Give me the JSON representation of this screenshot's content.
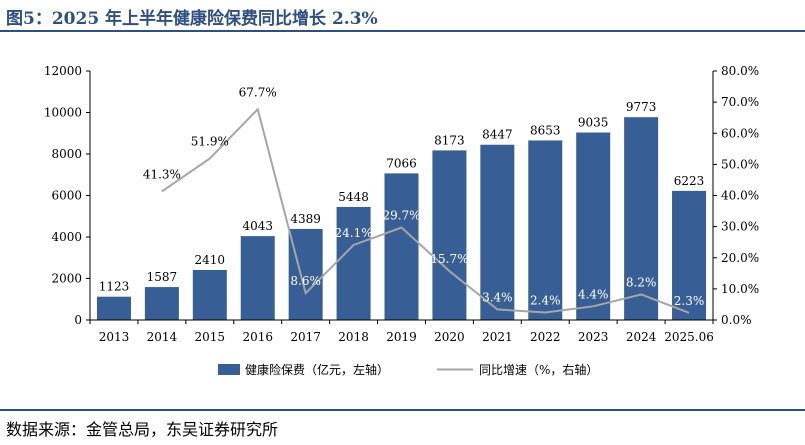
{
  "figure": {
    "title": "图5：2025 年上半年健康险保费同比增长 2.3%",
    "source": "数据来源：金管总局，东吴证券研究所"
  },
  "chart_data": {
    "type": "bar",
    "categories": [
      "2013",
      "2014",
      "2015",
      "2016",
      "2017",
      "2018",
      "2019",
      "2020",
      "2021",
      "2022",
      "2023",
      "2024",
      "2025.06"
    ],
    "series": [
      {
        "name": "健康险保费（亿元，左轴）",
        "type": "bar",
        "axis": "left",
        "color": "#385f95",
        "values": [
          1123,
          1587,
          2410,
          4043,
          4389,
          5448,
          7066,
          8173,
          8447,
          8653,
          9035,
          9773,
          6223
        ],
        "labels": [
          "1123",
          "1587",
          "2410",
          "4043",
          "4389",
          "5448",
          "7066",
          "8173",
          "8447",
          "8653",
          "9035",
          "9773",
          "6223"
        ]
      },
      {
        "name": "同比增速（%，右轴）",
        "type": "line",
        "axis": "right",
        "color": "#a6a6a6",
        "values": [
          null,
          41.3,
          51.9,
          67.7,
          8.6,
          24.1,
          29.7,
          15.7,
          3.4,
          2.4,
          4.4,
          8.2,
          2.3
        ],
        "labels": [
          null,
          "41.3%",
          "51.9%",
          "67.7%",
          "8.6%",
          "24.1%",
          "29.7%",
          "15.7%",
          "3.4%",
          "2.4%",
          "4.4%",
          "8.2%",
          "2.3%"
        ]
      }
    ],
    "y_left": {
      "min": 0,
      "max": 12000,
      "ticks": [
        0,
        2000,
        4000,
        6000,
        8000,
        10000,
        12000
      ],
      "tick_labels": [
        "0",
        "2000",
        "4000",
        "6000",
        "8000",
        "10000",
        "12000"
      ]
    },
    "y_right": {
      "min": 0,
      "max": 80,
      "ticks": [
        0,
        10,
        20,
        30,
        40,
        50,
        60,
        70,
        80
      ],
      "tick_labels": [
        "0.0%",
        "10.0%",
        "20.0%",
        "30.0%",
        "40.0%",
        "50.0%",
        "60.0%",
        "70.0%",
        "80.0%"
      ]
    },
    "grid": false,
    "legend_position": "bottom"
  }
}
